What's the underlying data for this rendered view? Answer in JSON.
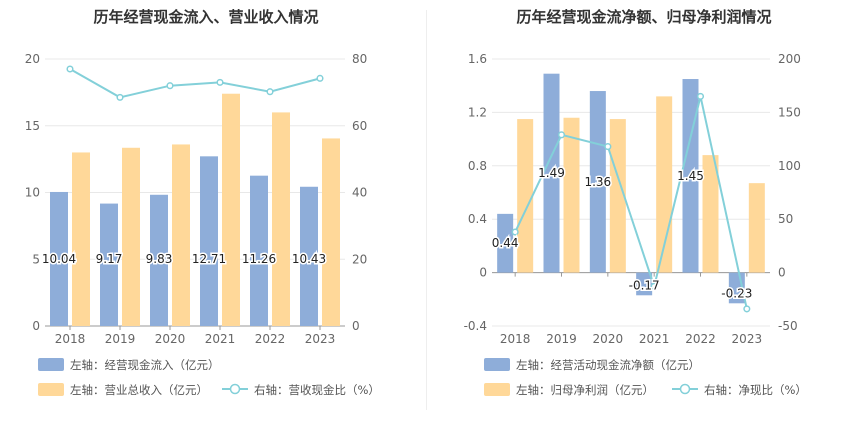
{
  "colors": {
    "bar1": "#8eadd9",
    "bar2": "#ffd899",
    "line": "#83d0d9",
    "grid": "#e8e8e8",
    "axis": "#999999"
  },
  "chart_data": [
    {
      "type": "bar",
      "title": "历年经营现金流入、营业收入情况",
      "categories": [
        "2018",
        "2019",
        "2020",
        "2021",
        "2022",
        "2023"
      ],
      "y_left": {
        "ticks": [
          "0",
          "5",
          "10",
          "15",
          "20"
        ],
        "lim": [
          0,
          20
        ]
      },
      "y_right": {
        "ticks": [
          "0",
          "20",
          "40",
          "60",
          "80"
        ],
        "lim": [
          0,
          80
        ]
      },
      "grid": true,
      "legend_position": "bottom",
      "series": [
        {
          "name": "左轴：经营现金流入（亿元）",
          "type": "bar",
          "axis": "left",
          "values": [
            10.04,
            9.17,
            9.83,
            12.71,
            11.26,
            10.43
          ],
          "labels": [
            "10.04",
            "9.17",
            "9.83",
            "12.71",
            "11.26",
            "10.43"
          ]
        },
        {
          "name": "左轴：营业总收入（亿元）",
          "type": "bar",
          "axis": "left",
          "values": [
            13.0,
            13.35,
            13.6,
            17.4,
            16.0,
            14.05
          ]
        },
        {
          "name": "右轴：营收现金比（%）",
          "type": "line",
          "axis": "right",
          "values": [
            77.0,
            68.5,
            72.0,
            73.0,
            70.2,
            74.2
          ]
        }
      ]
    },
    {
      "type": "bar",
      "title": "历年经营现金流净额、归母净利润情况",
      "categories": [
        "2018",
        "2019",
        "2020",
        "2021",
        "2022",
        "2023"
      ],
      "y_left": {
        "ticks": [
          "-0.4",
          "0",
          "0.4",
          "0.8",
          "1.2",
          "1.6"
        ],
        "lim": [
          -0.4,
          1.6
        ]
      },
      "y_right": {
        "ticks": [
          "-50",
          "0",
          "50",
          "100",
          "150",
          "200"
        ],
        "lim": [
          -50,
          200
        ]
      },
      "grid": true,
      "legend_position": "bottom",
      "series": [
        {
          "name": "左轴：经营活动现金流净额（亿元）",
          "type": "bar",
          "axis": "left",
          "values": [
            0.44,
            1.49,
            1.36,
            -0.17,
            1.45,
            -0.23
          ],
          "labels": [
            "0.44",
            "1.49",
            "1.36",
            "-0.17",
            "1.45",
            "-0.23"
          ]
        },
        {
          "name": "左轴：归母净利润（亿元）",
          "type": "bar",
          "axis": "left",
          "values": [
            1.15,
            1.16,
            1.15,
            1.32,
            0.88,
            0.67
          ]
        },
        {
          "name": "右轴：净现比（%）",
          "type": "line",
          "axis": "right",
          "values": [
            38,
            129,
            118,
            -13,
            165,
            -34
          ]
        }
      ]
    }
  ]
}
